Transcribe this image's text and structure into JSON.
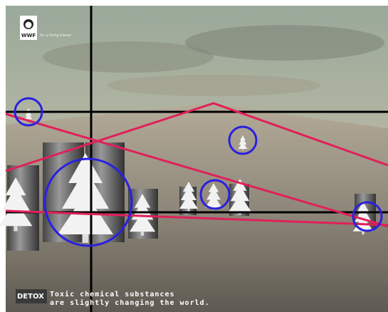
{
  "logo": {
    "name": "WWF",
    "tagline": "for a living planet"
  },
  "footer": {
    "brand": "DETOX",
    "lines": [
      "Toxic chemical substances",
      "are slightly changing the world."
    ]
  }
}
